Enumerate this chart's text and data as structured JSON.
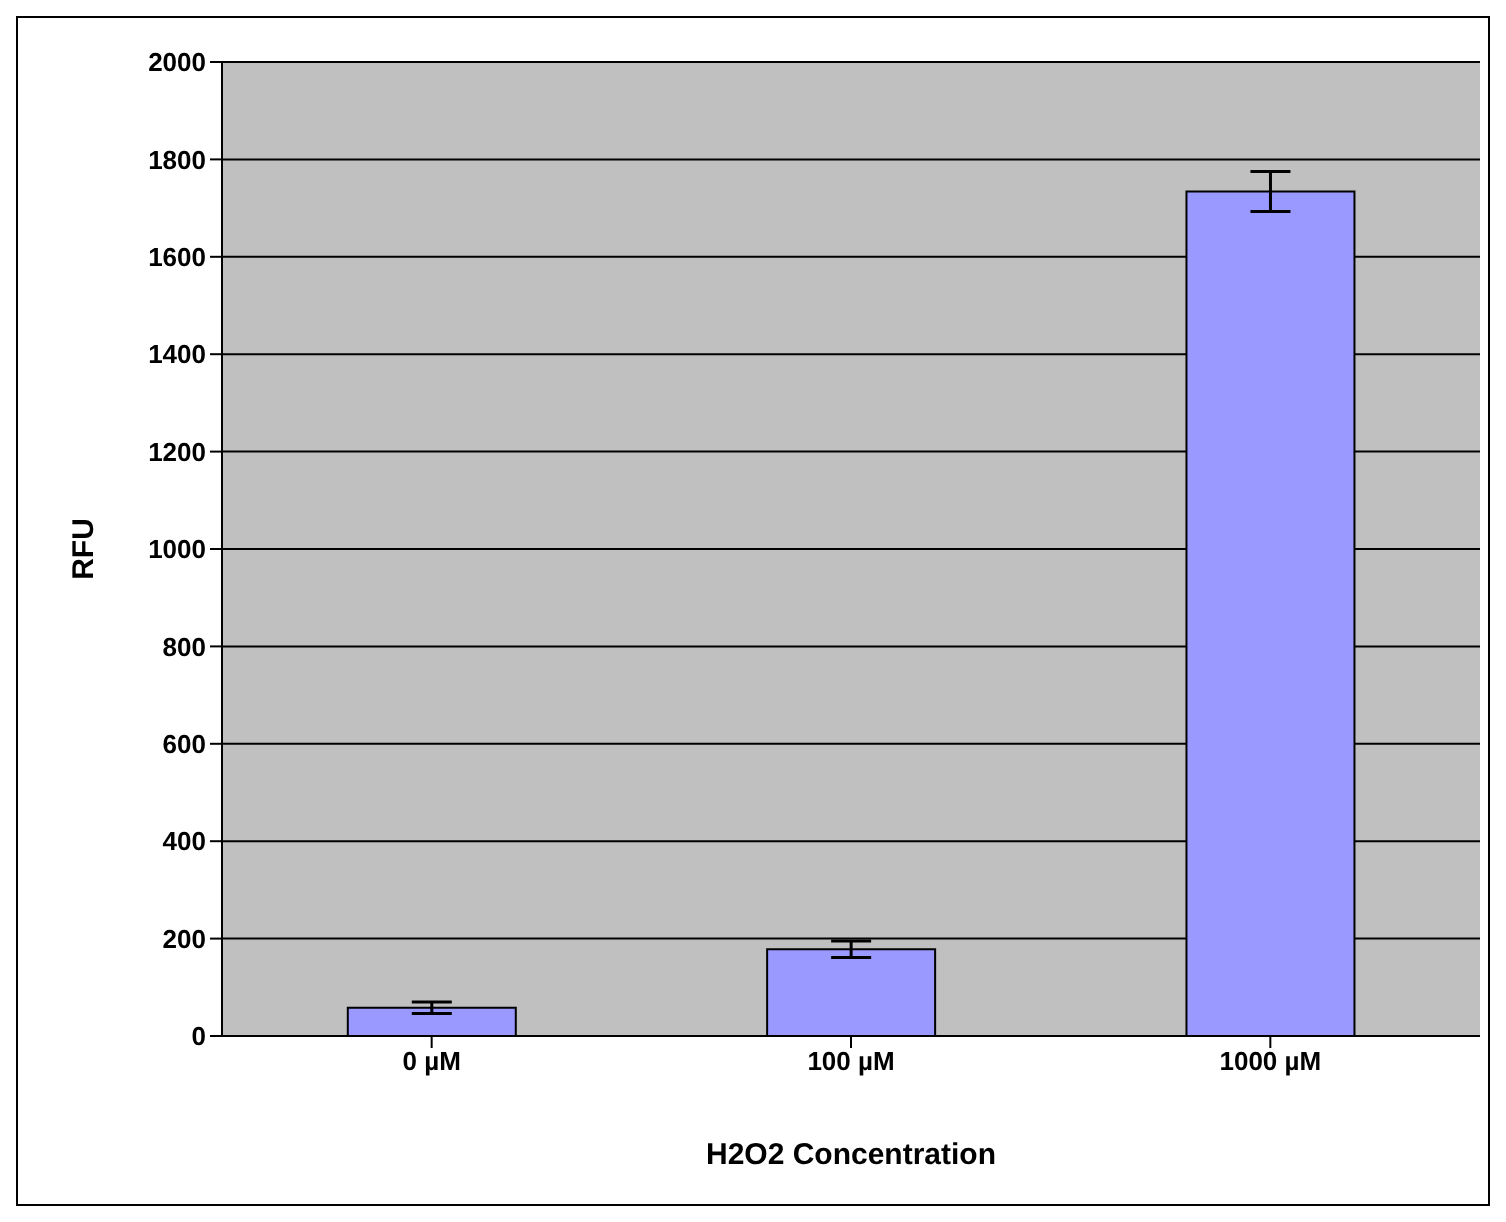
{
  "chart_data": {
    "type": "bar",
    "xlabel": "H2O2  Concentration",
    "ylabel": "RFU",
    "categories": [
      "0 µM",
      "100 µM",
      "1000 µM"
    ],
    "values": [
      58,
      178,
      1734
    ],
    "errors": [
      12,
      17,
      41
    ],
    "color": "#9999ff",
    "ylim": [
      0,
      2000
    ],
    "yticks": [
      0,
      200,
      400,
      600,
      800,
      1000,
      1200,
      1400,
      1600,
      1800,
      2000
    ],
    "grid": "y",
    "legend": false
  }
}
